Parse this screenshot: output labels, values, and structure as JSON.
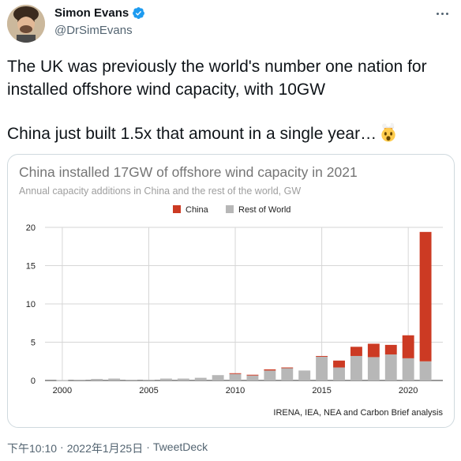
{
  "author": {
    "name": "Simon Evans",
    "handle": "@DrSimEvans",
    "verified_icon": "verified-badge-icon",
    "more_icon": "more-icon"
  },
  "tweet": {
    "paragraph1": "The UK was previously the world's number one nation for installed offshore wind capacity, with 10GW",
    "paragraph2": "China just built 1.5x that amount in a single year…",
    "emoji": "exploding-head-emoji"
  },
  "chart_data": {
    "type": "bar",
    "stacked": true,
    "title": "China installed 17GW of offshore wind capacity in 2021",
    "subtitle": "Annual capacity additions in China and the rest of the world, GW",
    "source": "IRENA, IEA, NEA and Carbon Brief analysis",
    "x": [
      2000,
      2001,
      2002,
      2003,
      2004,
      2005,
      2006,
      2007,
      2008,
      2009,
      2010,
      2011,
      2012,
      2013,
      2014,
      2015,
      2016,
      2017,
      2018,
      2019,
      2020,
      2021
    ],
    "xticks": [
      2000,
      2005,
      2010,
      2015,
      2020
    ],
    "yticks": [
      0,
      5,
      10,
      15,
      20
    ],
    "ylim": [
      0,
      20
    ],
    "grid": true,
    "legend_position": "top",
    "series": [
      {
        "name": "Rest of World",
        "color": "#b7b7b7",
        "values": [
          0.05,
          0.1,
          0.2,
          0.25,
          0.1,
          0.1,
          0.25,
          0.25,
          0.35,
          0.7,
          0.85,
          0.65,
          1.3,
          1.6,
          1.3,
          3.1,
          1.7,
          3.2,
          3.05,
          3.4,
          2.9,
          2.5
        ]
      },
      {
        "name": "China",
        "color": "#cc3a23",
        "values": [
          0,
          0,
          0,
          0,
          0,
          0,
          0,
          0,
          0,
          0,
          0.1,
          0.1,
          0.15,
          0.1,
          0,
          0.1,
          0.9,
          1.2,
          1.75,
          1.25,
          3.0,
          16.9
        ]
      }
    ]
  },
  "footer": {
    "time": "下午10:10",
    "separator": "·",
    "date": "2022年1月25日",
    "separator2": "·",
    "client": "TweetDeck"
  }
}
